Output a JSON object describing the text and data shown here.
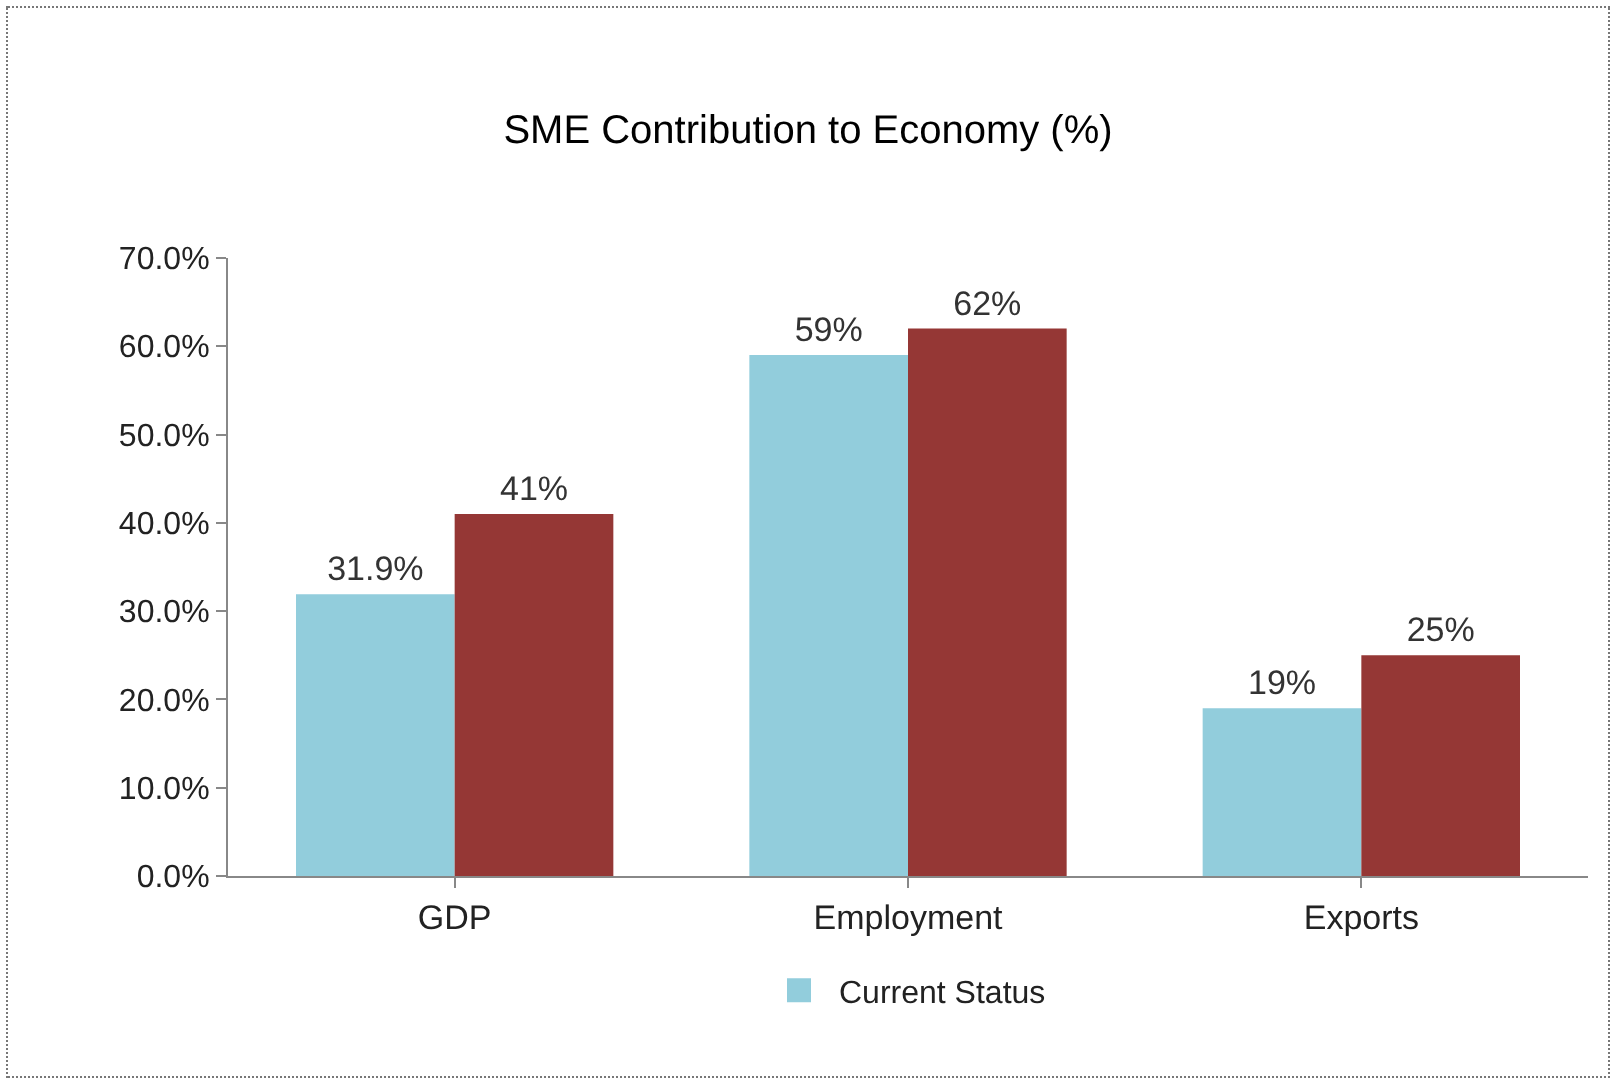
{
  "chart_data": {
    "type": "bar",
    "title": "SME Contribution to Economy (%)",
    "categories": [
      "GDP",
      "Employment",
      "Exports"
    ],
    "series": [
      {
        "name": "Current Status",
        "color": "#92cddc",
        "values": [
          31.9,
          59,
          19
        ],
        "value_labels": [
          "31.9%",
          "59%",
          "19%"
        ]
      },
      {
        "color": "#953735",
        "values": [
          41,
          62,
          25
        ],
        "value_labels": [
          "41%",
          "62%",
          "25%"
        ]
      }
    ],
    "ylim": [
      0,
      70
    ],
    "yticks": [
      {
        "value": 0,
        "label": "0.0%"
      },
      {
        "value": 10,
        "label": "10.0%"
      },
      {
        "value": 20,
        "label": "20.0%"
      },
      {
        "value": 30,
        "label": "30.0%"
      },
      {
        "value": 40,
        "label": "40.0%"
      },
      {
        "value": 50,
        "label": "50.0%"
      },
      {
        "value": 60,
        "label": "60.0%"
      },
      {
        "value": 70,
        "label": "70.0%"
      }
    ],
    "grid": false,
    "legend": "bottom"
  }
}
